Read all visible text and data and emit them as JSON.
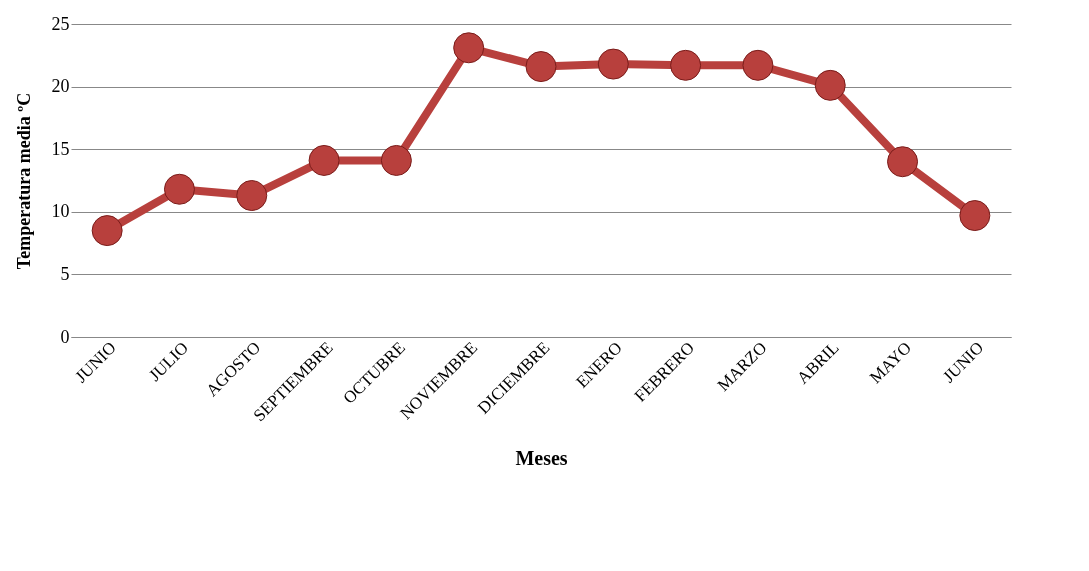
{
  "chart_data": {
    "type": "line",
    "xlabel": "Meses",
    "ylabel": "Temperatura media ºC",
    "categories": [
      "JUNIO",
      "JULIO",
      "AGOSTO",
      "SEPTIEMBRE",
      "OCTUBRE",
      "NOVIEMBRE",
      "DICIEMBRE",
      "ENERO",
      "FEBRERO",
      "MARZO",
      "ABRIL",
      "MAYO",
      "JUNIO"
    ],
    "series": [
      {
        "color": "#b8403d",
        "values": [
          8.5,
          11.8,
          11.3,
          14.1,
          14.1,
          23.1,
          21.6,
          21.8,
          21.7,
          21.7,
          20.1,
          14.0,
          9.7
        ]
      }
    ],
    "ylim": [
      0,
      25
    ],
    "yticks": [
      0,
      5,
      10,
      15,
      20,
      25
    ],
    "grid": "y",
    "marker": "circle",
    "line_style": "solid",
    "legend": false
  }
}
